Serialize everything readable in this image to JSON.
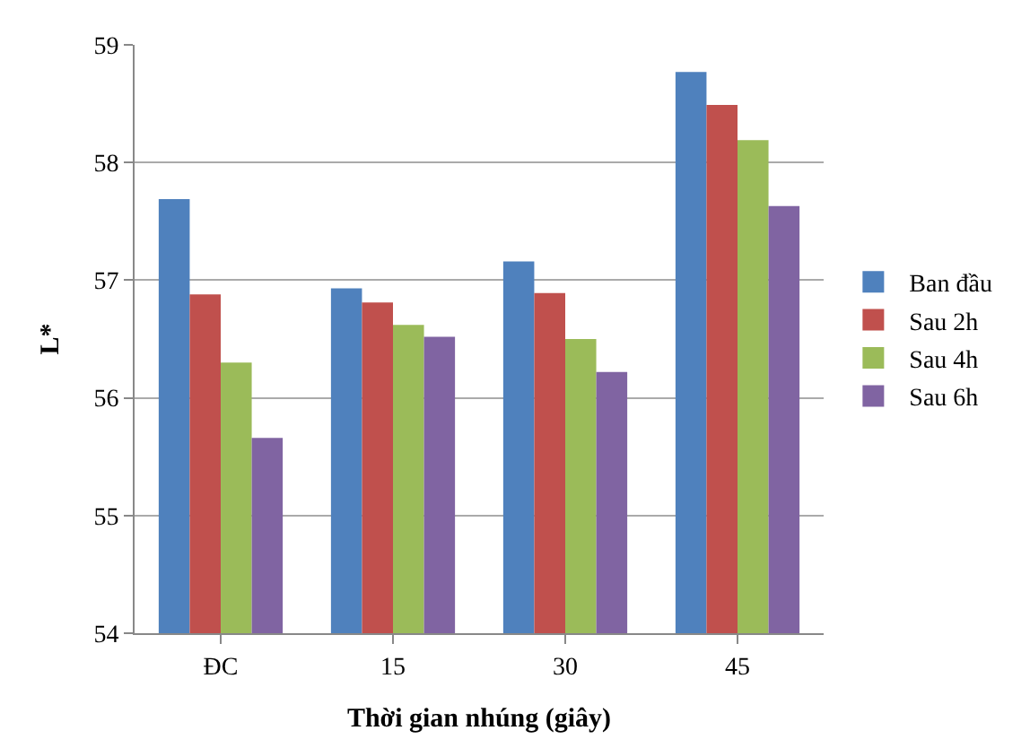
{
  "chart_data": {
    "type": "bar",
    "xlabel": "Thời gian nhúng (giây)",
    "ylabel": "L*",
    "categories": [
      "ĐC",
      "15",
      "30",
      "45"
    ],
    "series": [
      {
        "name": "Ban đầu",
        "color": "#4f81bd",
        "values": [
          57.69,
          56.93,
          57.16,
          58.77
        ]
      },
      {
        "name": "Sau 2h",
        "color": "#c0504d",
        "values": [
          56.88,
          56.81,
          56.89,
          58.49
        ]
      },
      {
        "name": "Sau 4h",
        "color": "#9bbb59",
        "values": [
          56.3,
          56.62,
          56.5,
          58.19
        ]
      },
      {
        "name": "Sau 6h",
        "color": "#8064a2",
        "values": [
          55.66,
          56.52,
          56.22,
          57.63
        ]
      }
    ],
    "ylim": [
      54,
      59
    ],
    "yticks": [
      54,
      55,
      56,
      57,
      58,
      59
    ],
    "grid": "y",
    "legend": "right"
  }
}
